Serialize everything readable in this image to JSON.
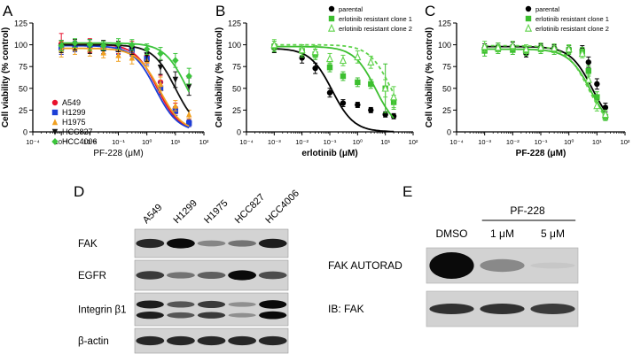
{
  "panel_letters": {
    "a": "A",
    "b": "B",
    "c": "C",
    "d": "D",
    "e": "E"
  },
  "colors": {
    "a549": "#e8112d",
    "h1299": "#1c3fd6",
    "h1975": "#f0a020",
    "hcc827": "#111111",
    "hcc4006": "#3cc43c",
    "parental": "#000000",
    "clone1": "#3cbf2f",
    "clone2": "#5ed24a"
  },
  "chart_data": [
    {
      "type": "scatter",
      "panel": "A",
      "xlabel": "PF-228 (μM)",
      "ylabel": "Cell viability (% control)",
      "xscale": "log",
      "xlim": [
        0.0001,
        100
      ],
      "ylim": [
        0,
        125
      ],
      "x_ticks": [
        "10⁻⁴",
        "10⁻³",
        "10⁻²",
        "10⁻¹",
        "10⁰",
        "10¹",
        "10²"
      ],
      "y_ticks": [
        0,
        25,
        50,
        75,
        100,
        125
      ],
      "legend_position": "bottom-left",
      "x": [
        0.001,
        0.003,
        0.01,
        0.03,
        0.1,
        0.3,
        1,
        3,
        10,
        30
      ],
      "series": [
        {
          "name": "A549",
          "color_key": "a549",
          "marker": "circle",
          "values": [
            101,
            100,
            99,
            96,
            97,
            96,
            87,
            57,
            27,
            11
          ],
          "errors": [
            12,
            6,
            8,
            6,
            7,
            8,
            8,
            8,
            6,
            4
          ],
          "ic50": 2.3
        },
        {
          "name": "H1299",
          "color_key": "h1299",
          "marker": "square",
          "values": [
            97,
            98,
            99,
            96,
            95,
            94,
            84,
            50,
            24,
            10
          ],
          "errors": [
            8,
            6,
            7,
            6,
            6,
            7,
            7,
            7,
            5,
            4
          ],
          "ic50": 2.0
        },
        {
          "name": "H1975",
          "color_key": "h1975",
          "marker": "triangle",
          "values": [
            95,
            96,
            95,
            91,
            88,
            85,
            82,
            55,
            30,
            20
          ],
          "errors": [
            9,
            7,
            8,
            6,
            7,
            7,
            7,
            8,
            6,
            5
          ],
          "ic50": 2.8
        },
        {
          "name": "HCC827",
          "color_key": "hcc827",
          "marker": "triangle-down",
          "values": [
            98,
            100,
            98,
            99,
            98,
            95,
            88,
            74,
            60,
            52
          ],
          "errors": [
            7,
            6,
            8,
            6,
            6,
            6,
            7,
            8,
            9,
            10
          ],
          "ic50": 10
        },
        {
          "name": "HCC4006",
          "color_key": "hcc4006",
          "marker": "diamond",
          "values": [
            99,
            102,
            100,
            99,
            101,
            100,
            95,
            90,
            82,
            64
          ],
          "errors": [
            6,
            5,
            6,
            5,
            6,
            6,
            6,
            7,
            8,
            9
          ],
          "ic50": 25
        }
      ]
    },
    {
      "type": "scatter",
      "panel": "B",
      "xlabel": "erlotinib (μM)",
      "ylabel": "Cell viability (% control)",
      "xscale": "log",
      "xlim": [
        0.0001,
        100
      ],
      "ylim": [
        0,
        125
      ],
      "x_ticks": [
        "10⁻⁴",
        "10⁻³",
        "10⁻²",
        "10⁻¹",
        "10⁰",
        "10¹",
        "10²"
      ],
      "y_ticks": [
        0,
        25,
        50,
        75,
        100,
        125
      ],
      "legend_position": "top-right",
      "x": [
        0.001,
        0.01,
        0.03,
        0.1,
        0.3,
        1,
        3,
        10,
        20
      ],
      "series": [
        {
          "name": "parental",
          "color_key": "parental",
          "marker": "circle",
          "line": "solid",
          "values": [
            96,
            85,
            73,
            45,
            33,
            31,
            25,
            20,
            18
          ],
          "errors": [
            5,
            6,
            6,
            5,
            4,
            3,
            3,
            3,
            3
          ],
          "ic50": 0.12
        },
        {
          "name": "erlotinib resistant clone 1",
          "color_key": "clone1",
          "marker": "square",
          "line": "solid",
          "values": [
            98,
            93,
            89,
            74,
            64,
            57,
            55,
            50,
            34
          ],
          "errors": [
            6,
            7,
            6,
            5,
            5,
            5,
            5,
            28,
            8
          ],
          "ic50": 4.5
        },
        {
          "name": "erlotinib resistant clone 2",
          "color_key": "clone2",
          "marker": "triangle-open",
          "line": "dashed",
          "values": [
            100,
            94,
            92,
            84,
            82,
            86,
            80,
            50,
            40
          ],
          "errors": [
            6,
            6,
            7,
            6,
            6,
            7,
            7,
            10,
            12
          ],
          "ic50": 16
        }
      ]
    },
    {
      "type": "scatter",
      "panel": "C",
      "xlabel": "PF-228 (μM)",
      "ylabel": "Cell viability (% control)",
      "xscale": "log",
      "xlim": [
        0.0001,
        100
      ],
      "ylim": [
        0,
        125
      ],
      "x_ticks": [
        "10⁻⁴",
        "10⁻³",
        "10⁻²",
        "10⁻¹",
        "10⁰",
        "10¹",
        "10²"
      ],
      "y_ticks": [
        0,
        25,
        50,
        75,
        100,
        125
      ],
      "legend_position": "top-right",
      "x": [
        0.001,
        0.003,
        0.01,
        0.03,
        0.1,
        0.3,
        1,
        3,
        5,
        10,
        20
      ],
      "series": [
        {
          "name": "parental",
          "color_key": "parental",
          "marker": "circle",
          "line": "solid",
          "values": [
            96,
            97,
            98,
            90,
            97,
            96,
            95,
            94,
            80,
            55,
            28
          ],
          "errors": [
            5,
            5,
            5,
            4,
            4,
            4,
            4,
            5,
            6,
            6,
            5
          ],
          "ic50": 7
        },
        {
          "name": "erlotinib resistant clone 1",
          "color_key": "clone1",
          "marker": "square",
          "line": "solid",
          "values": [
            93,
            95,
            94,
            93,
            95,
            94,
            94,
            92,
            70,
            40,
            17
          ],
          "errors": [
            6,
            5,
            5,
            5,
            5,
            5,
            5,
            5,
            6,
            6,
            4
          ],
          "ic50": 6
        },
        {
          "name": "erlotinib resistant clone 2",
          "color_key": "clone2",
          "marker": "triangle-open",
          "line": "dashed",
          "values": [
            98,
            97,
            99,
            95,
            97,
            96,
            95,
            90,
            60,
            30,
            20
          ],
          "errors": [
            6,
            5,
            5,
            5,
            5,
            5,
            5,
            5,
            6,
            6,
            5
          ],
          "ic50": 5
        }
      ]
    }
  ],
  "blot_d": {
    "lanes": [
      "A549",
      "H1299",
      "H1975",
      "HCC827",
      "HCC4006"
    ],
    "rows": [
      {
        "label": "FAK",
        "bands": [
          0.85,
          1.0,
          0.35,
          0.45,
          0.9
        ],
        "double": false
      },
      {
        "label": "EGFR",
        "bands": [
          0.75,
          0.45,
          0.55,
          1.0,
          0.65
        ],
        "double": false
      },
      {
        "label": "Integrin β1",
        "bands": [
          0.9,
          0.6,
          0.75,
          0.3,
          1.0
        ],
        "double": true
      },
      {
        "label": "β-actin",
        "bands": [
          0.85,
          0.85,
          0.85,
          0.85,
          0.85
        ],
        "double": false
      }
    ]
  },
  "blot_e": {
    "treatment_label": "PF-228",
    "lanes": [
      "DMSO",
      "1 μM",
      "5 μM"
    ],
    "rows": [
      {
        "label": "FAK AUTORAD",
        "bands": [
          1.0,
          0.35,
          0.03
        ]
      },
      {
        "label": "IB: FAK",
        "bands": [
          0.8,
          0.8,
          0.75
        ]
      }
    ]
  }
}
